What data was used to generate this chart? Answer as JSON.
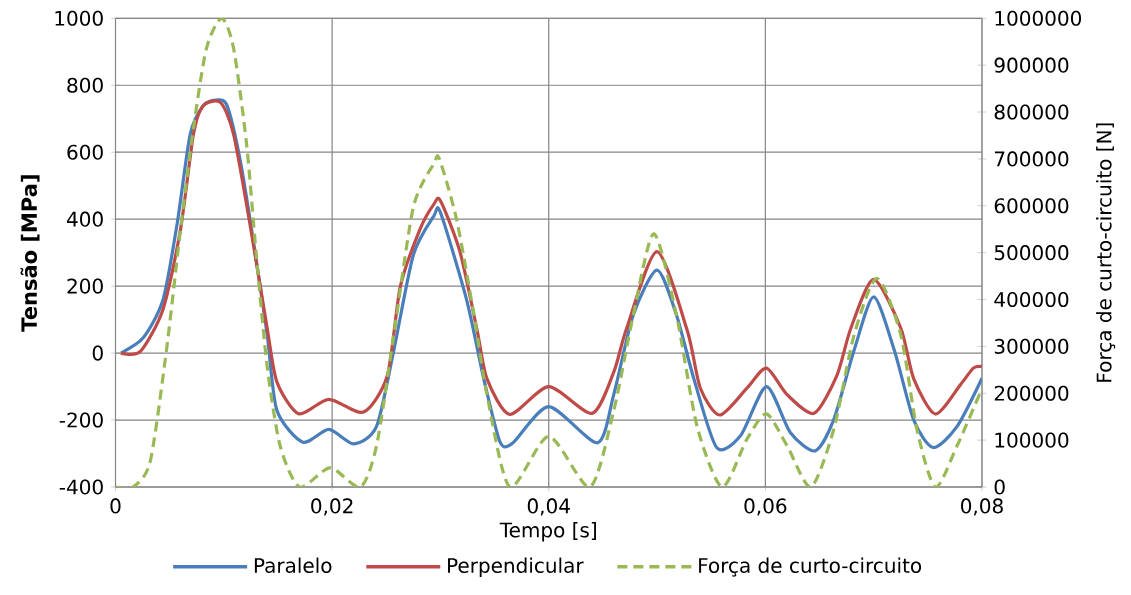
{
  "chart_data": {
    "type": "line",
    "xlabel": "Tempo [s]",
    "ylabel": "Tensão [MPa]",
    "y2label": "Força de curto-circuito [N]",
    "xlim": [
      0,
      0.08
    ],
    "xticks": [
      0,
      {
        "value": 0.02,
        "label": "0,02"
      },
      {
        "value": 0.04,
        "label": "0,04"
      },
      {
        "value": 0.06,
        "label": "0,06"
      },
      {
        "value": 0.08,
        "label": "0,08"
      }
    ],
    "ylim": [
      -400,
      1000
    ],
    "yticks": [
      -400,
      -200,
      0,
      200,
      400,
      600,
      800,
      1000
    ],
    "y2lim": [
      0,
      1000000
    ],
    "y2ticks": [
      0,
      100000,
      200000,
      300000,
      400000,
      500000,
      600000,
      700000,
      800000,
      900000,
      1000000
    ],
    "grid": true,
    "legend": "bottom",
    "series": [
      {
        "name": "Paralelo",
        "color": "#4a7ebb",
        "line_style": "solid",
        "x": [
          0.0005,
          0.0026,
          0.0044,
          0.0057,
          0.0069,
          0.0081,
          0.0093,
          0.0103,
          0.0115,
          0.0127,
          0.014,
          0.0149,
          0.0173,
          0.0197,
          0.022,
          0.0241,
          0.0257,
          0.0275,
          0.0294,
          0.03,
          0.0324,
          0.034,
          0.0355,
          0.0367,
          0.04,
          0.0445,
          0.046,
          0.0478,
          0.05,
          0.0518,
          0.0534,
          0.0555,
          0.0577,
          0.0601,
          0.0623,
          0.0646,
          0.0663,
          0.0682,
          0.07,
          0.0719,
          0.0737,
          0.0755,
          0.0777,
          0.08
        ],
        "values": [
          0,
          47,
          161,
          388,
          654,
          739,
          756,
          739,
          578,
          341,
          56,
          -171,
          -266,
          -228,
          -271,
          -219,
          9,
          293,
          410,
          420,
          161,
          -77,
          -265,
          -268,
          -160,
          -268,
          -124,
          113,
          248,
          113,
          -77,
          -282,
          -247,
          -100,
          -237,
          -292,
          -200,
          9,
          168,
          9,
          -200,
          -282,
          -219,
          -75
        ]
      },
      {
        "name": "Perpendicular",
        "color": "#be4b48",
        "line_style": "solid",
        "x": [
          0.0005,
          0.0023,
          0.0044,
          0.006,
          0.0072,
          0.0081,
          0.0097,
          0.0109,
          0.0124,
          0.014,
          0.0149,
          0.0169,
          0.0197,
          0.0229,
          0.0251,
          0.0263,
          0.0281,
          0.0294,
          0.03,
          0.0318,
          0.0334,
          0.0343,
          0.0364,
          0.04,
          0.044,
          0.046,
          0.0472,
          0.05,
          0.0528,
          0.054,
          0.0558,
          0.0583,
          0.0601,
          0.062,
          0.0645,
          0.0666,
          0.0679,
          0.07,
          0.0725,
          0.0737,
          0.0757,
          0.078,
          0.0792,
          0.08
        ],
        "values": [
          0,
          5,
          132,
          369,
          654,
          739,
          748,
          654,
          388,
          75,
          -86,
          -181,
          -138,
          -176,
          -67,
          199,
          369,
          445,
          455,
          303,
          66,
          -77,
          -183,
          -100,
          -180,
          -57,
          75,
          303,
          66,
          -105,
          -185,
          -105,
          -45,
          -124,
          -180,
          -67,
          75,
          220,
          75,
          -77,
          -182,
          -95,
          -45,
          -40
        ]
      },
      {
        "name": "Força de curto-circuito",
        "color": "#98b954",
        "line_style": "dashed",
        "axis": "y2",
        "x": [
          0,
          0.0016,
          0.0032,
          0.0047,
          0.006,
          0.0072,
          0.0084,
          0.0098,
          0.0109,
          0.0121,
          0.013,
          0.014,
          0.0152,
          0.017,
          0.0198,
          0.0226,
          0.0241,
          0.0257,
          0.0275,
          0.0294,
          0.0299,
          0.0315,
          0.0331,
          0.0343,
          0.0364,
          0.04,
          0.0438,
          0.046,
          0.0478,
          0.0497,
          0.0518,
          0.0537,
          0.056,
          0.0583,
          0.0601,
          0.062,
          0.0642,
          0.0663,
          0.0682,
          0.0703,
          0.0725,
          0.074,
          0.0757,
          0.0777,
          0.08
        ],
        "values": [
          0,
          0,
          54000,
          291000,
          549000,
          766000,
          936000,
          1000000,
          936000,
          732000,
          495000,
          258000,
          88000,
          0,
          41000,
          0,
          88000,
          325000,
          597000,
          690000,
          700000,
          570000,
          366000,
          197000,
          0,
          108000,
          0,
          163000,
          366000,
          540000,
          366000,
          129000,
          0,
          102000,
          156000,
          88000,
          0,
          122000,
          325000,
          445000,
          325000,
          122000,
          0,
          88000,
          210000
        ]
      }
    ]
  }
}
